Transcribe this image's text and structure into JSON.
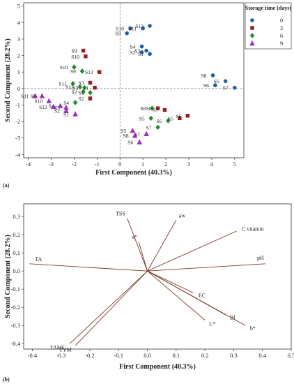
{
  "chart_data": [
    {
      "type": "scatter",
      "panel_label": "(a)",
      "xlabel": "First Component (40.3%)",
      "ylabel": "Second Component (28.2%)",
      "xlim": [
        -4.2,
        5.4
      ],
      "ylim": [
        -4.2,
        5.2
      ],
      "xticks": [
        -4,
        -3,
        -2,
        -1,
        0,
        1,
        2,
        3,
        4,
        5
      ],
      "yticks": [
        -4,
        -3,
        -2,
        -1,
        0,
        1,
        2,
        3,
        4,
        5
      ],
      "reference_lines": {
        "x": 0,
        "y": 0
      },
      "legend": {
        "title": "Storage time (days)",
        "placement": "top-right",
        "entries": [
          {
            "label": "0",
            "color": "#1f5fa6",
            "marker": "circle"
          },
          {
            "label": "3",
            "color": "#9b1d20",
            "marker": "square"
          },
          {
            "label": "6",
            "color": "#1f8a2a",
            "marker": "diamond"
          },
          {
            "label": "9",
            "color": "#9b30c8",
            "marker": "triangle"
          }
        ]
      },
      "series": [
        {
          "name": "0",
          "points": [
            {
              "label": "S9",
              "x": 0.3,
              "y": 3.35
            },
            {
              "label": "S10",
              "x": 0.45,
              "y": 3.65
            },
            {
              "label": "S11",
              "x": 1.0,
              "y": 3.65
            },
            {
              "label": "S12",
              "x": 1.3,
              "y": 3.8
            },
            {
              "label": "S4",
              "x": 0.95,
              "y": 2.55
            },
            {
              "label": "S3",
              "x": 1.15,
              "y": 2.3
            },
            {
              "label": "S2",
              "x": 0.95,
              "y": 2.2
            },
            {
              "label": "S1",
              "x": 1.3,
              "y": 2.1
            },
            {
              "label": "S8",
              "x": 4.05,
              "y": 0.8
            },
            {
              "label": "S6",
              "x": 4.15,
              "y": 0.2
            },
            {
              "label": "S5",
              "x": 4.6,
              "y": 0.45
            },
            {
              "label": "S7",
              "x": 5.0,
              "y": 0.05
            }
          ]
        },
        {
          "name": "3",
          "points": [
            {
              "label": "S9",
              "x": -1.6,
              "y": 2.3
            },
            {
              "label": "S10",
              "x": -1.5,
              "y": 1.95
            },
            {
              "label": "S12",
              "x": -0.9,
              "y": 1.0
            },
            {
              "label": "S3",
              "x": -1.3,
              "y": 0.35
            },
            {
              "label": "S1",
              "x": -1.1,
              "y": 0.05
            },
            {
              "label": "S2",
              "x": -1.3,
              "y": -0.6
            },
            {
              "label": "S8",
              "x": 1.65,
              "y": -1.2
            },
            {
              "label": "S7",
              "x": 1.95,
              "y": -1.3
            },
            {
              "label": "S5",
              "x": 2.6,
              "y": -1.8
            },
            {
              "label": "S6",
              "x": 2.95,
              "y": -1.65
            }
          ]
        },
        {
          "name": "6",
          "points": [
            {
              "label": "S10",
              "x": -2.0,
              "y": 1.3
            },
            {
              "label": "S9",
              "x": -1.65,
              "y": 1.05
            },
            {
              "label": "S11",
              "x": -2.05,
              "y": 0.3
            },
            {
              "label": "S12",
              "x": -1.75,
              "y": 0.1
            },
            {
              "label": "S3",
              "x": -1.55,
              "y": 0.05
            },
            {
              "label": "S2",
              "x": -1.6,
              "y": -0.2
            },
            {
              "label": "S1",
              "x": -1.3,
              "y": -0.25
            },
            {
              "label": "S4",
              "x": -1.95,
              "y": -0.85
            },
            {
              "label": "S8",
              "x": 1.4,
              "y": -1.2
            },
            {
              "label": "S5",
              "x": 1.35,
              "y": -1.8
            },
            {
              "label": "S6",
              "x": 2.1,
              "y": -1.95
            },
            {
              "label": "S7",
              "x": 1.65,
              "y": -2.35
            }
          ]
        },
        {
          "name": "9",
          "points": [
            {
              "label": "S11",
              "x": -3.7,
              "y": -0.45
            },
            {
              "label": "S9",
              "x": -3.4,
              "y": -0.45
            },
            {
              "label": "S10",
              "x": -3.1,
              "y": -0.75
            },
            {
              "label": "S4",
              "x": -2.6,
              "y": -1.05
            },
            {
              "label": "S12",
              "x": -2.9,
              "y": -1.1
            },
            {
              "label": "S3",
              "x": -2.35,
              "y": -1.15
            },
            {
              "label": "S2",
              "x": -2.35,
              "y": -1.35
            },
            {
              "label": "S1",
              "x": -1.95,
              "y": -1.55
            },
            {
              "label": "S5",
              "x": 0.55,
              "y": -2.55
            },
            {
              "label": "S8",
              "x": 0.65,
              "y": -2.85
            },
            {
              "label": "S7",
              "x": 1.15,
              "y": -2.75
            },
            {
              "label": "S6",
              "x": 0.85,
              "y": -3.25
            }
          ]
        }
      ]
    },
    {
      "type": "biplot",
      "panel_label": "(b)",
      "xlabel": "First Component (40.3%)",
      "ylabel": "Second Component (28.2%)",
      "xlim": [
        -0.43,
        0.5
      ],
      "ylim": [
        -0.43,
        0.37
      ],
      "xticks": [
        -0.4,
        -0.3,
        -0.2,
        -0.1,
        0.0,
        0.1,
        0.2,
        0.3,
        0.4,
        0.5
      ],
      "yticks": [
        -0.4,
        -0.3,
        -0.2,
        -0.1,
        0.0,
        0.1,
        0.2,
        0.3
      ],
      "vectors": [
        {
          "label": "TSS",
          "x": -0.07,
          "y": 0.29
        },
        {
          "label": "aw",
          "x": 0.1,
          "y": 0.28
        },
        {
          "label": "C vitamin",
          "x": 0.31,
          "y": 0.22
        },
        {
          "label": "a*",
          "x": -0.03,
          "y": 0.16
        },
        {
          "label": "TA",
          "x": -0.41,
          "y": 0.04
        },
        {
          "label": "pH",
          "x": 0.41,
          "y": 0.04
        },
        {
          "label": "EC",
          "x": 0.16,
          "y": -0.12
        },
        {
          "label": "Bl",
          "x": 0.27,
          "y": -0.24
        },
        {
          "label": "L*",
          "x": 0.2,
          "y": -0.27
        },
        {
          "label": "b*",
          "x": 0.34,
          "y": -0.3
        },
        {
          "label": "TAMC",
          "x": -0.27,
          "y": -0.4
        },
        {
          "label": "TYM",
          "x": -0.25,
          "y": -0.41
        }
      ]
    }
  ]
}
